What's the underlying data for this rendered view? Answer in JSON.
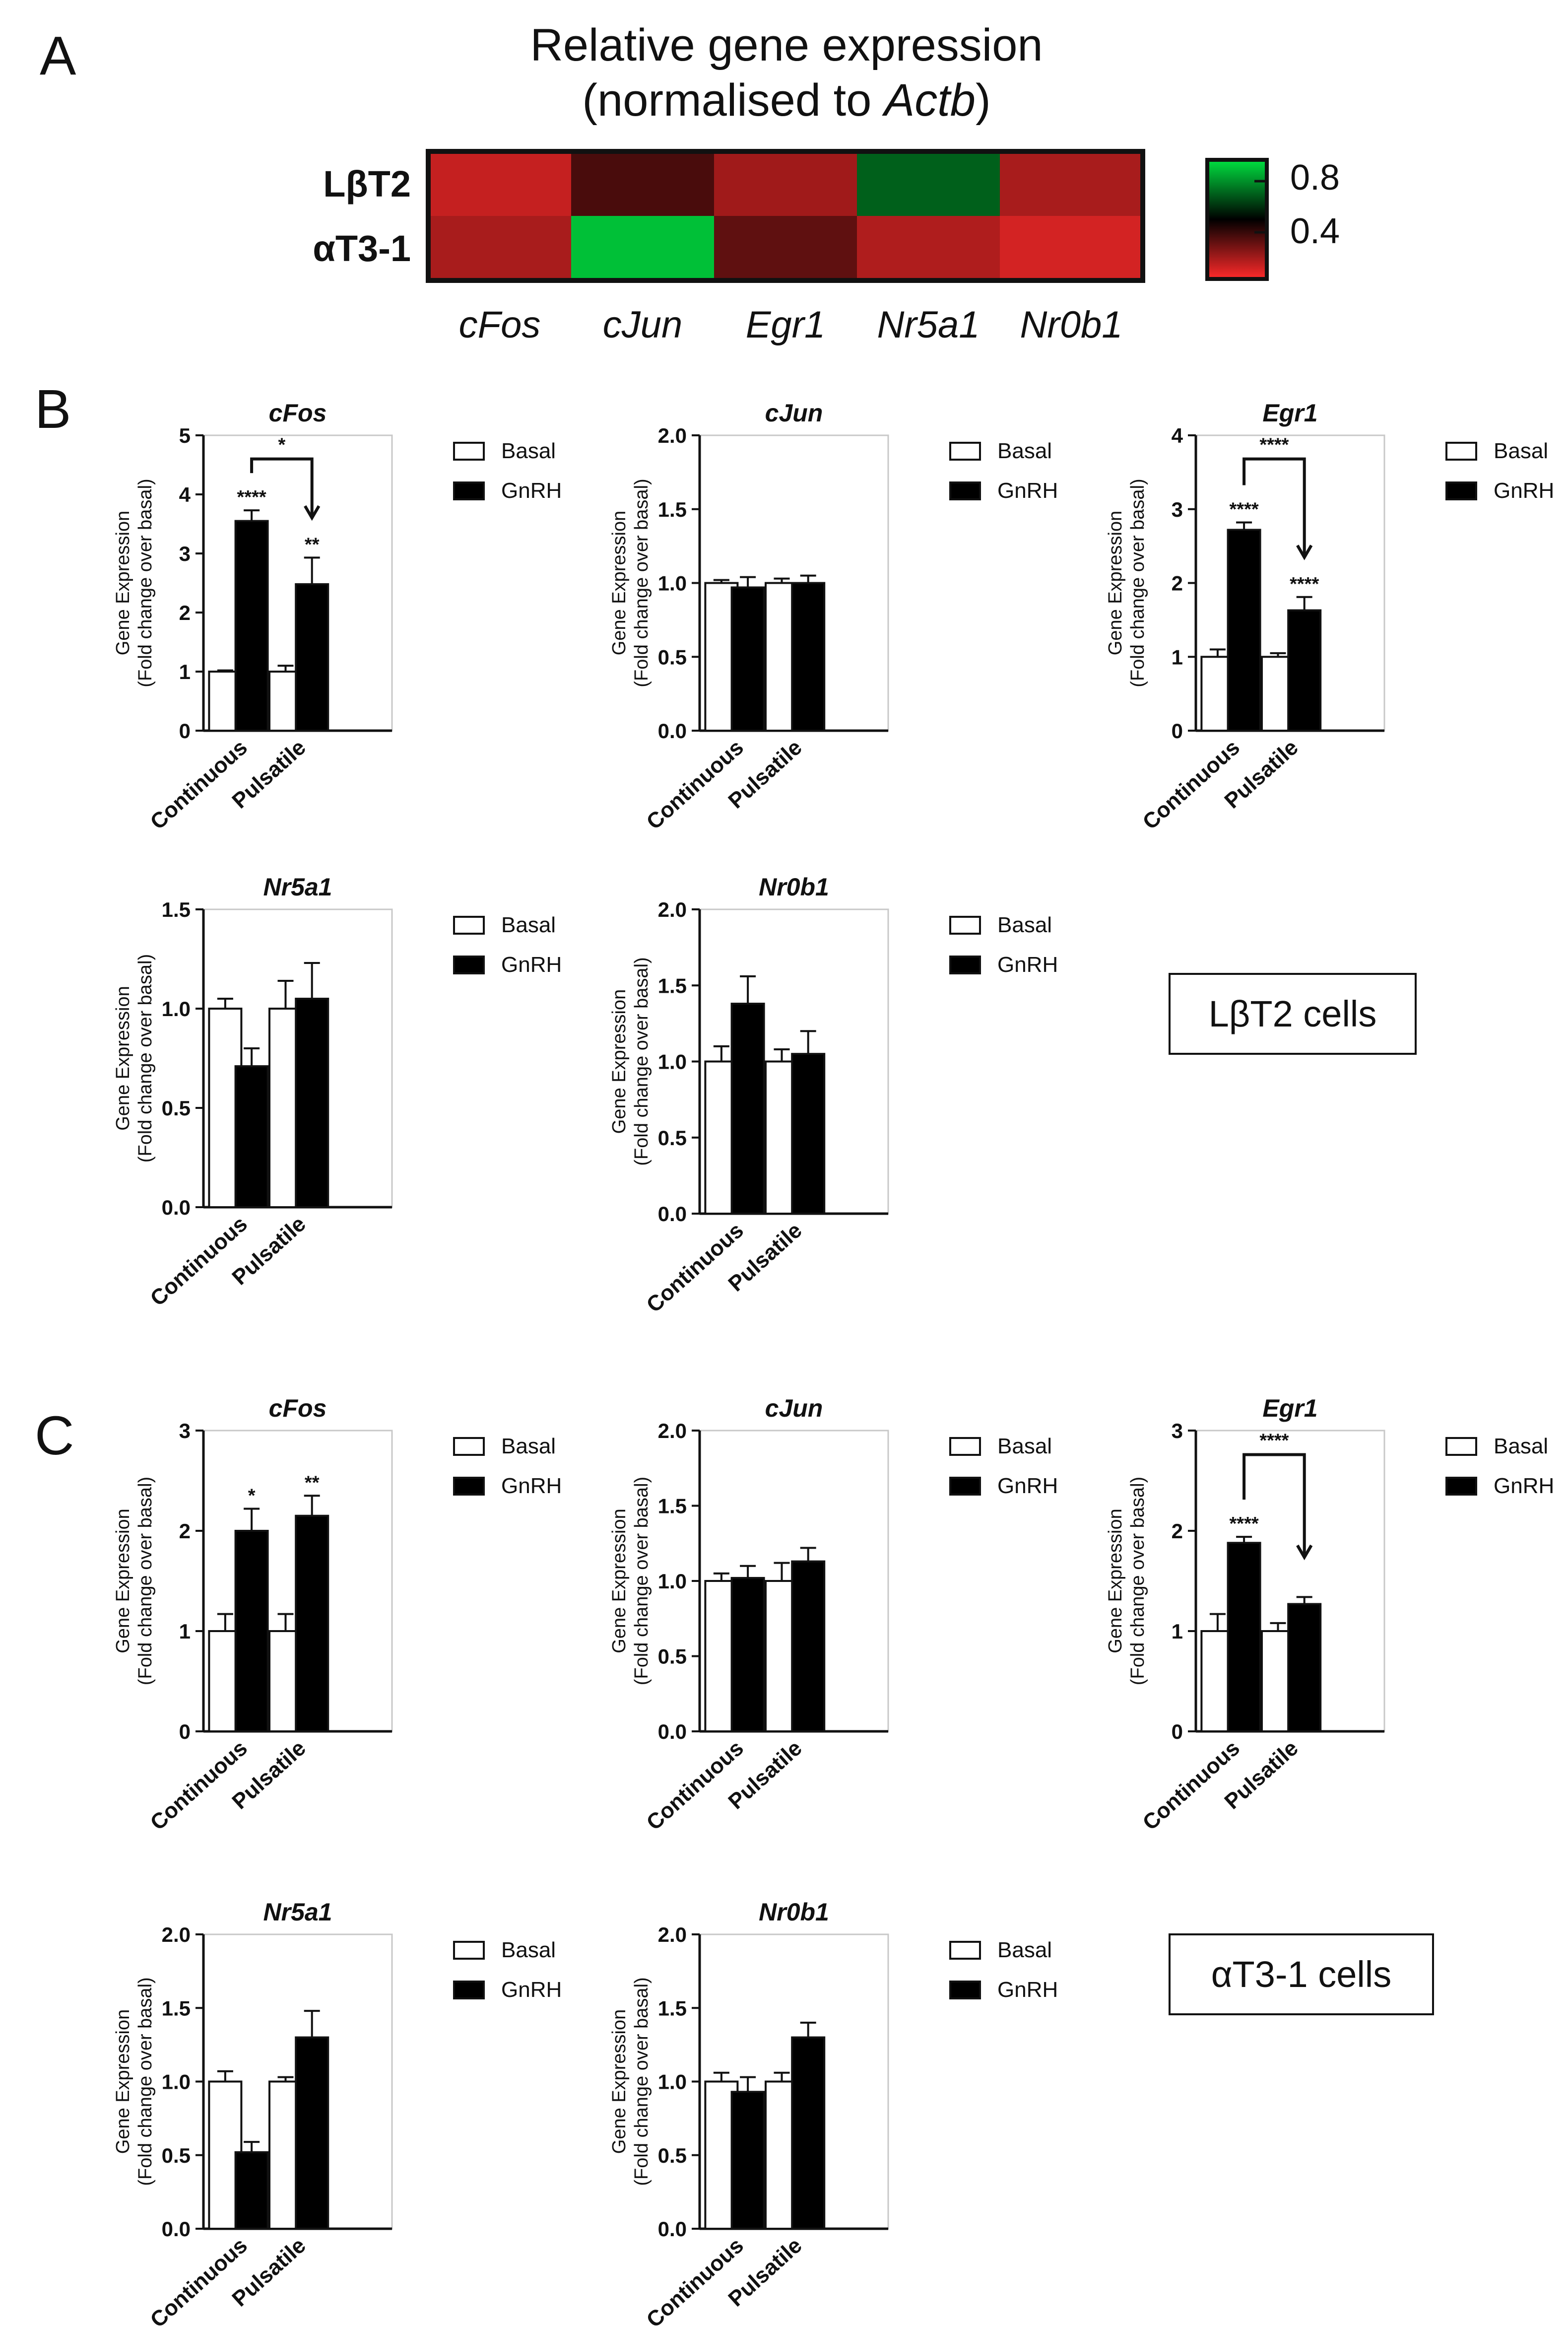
{
  "panel_labels": {
    "A": "A",
    "B": "B",
    "C": "C"
  },
  "legend": {
    "basal": "Basal",
    "gnrh": "GnRH"
  },
  "cell_labels": {
    "B": "LβT2 cells",
    "C": "αT3-1 cells"
  },
  "colors": {
    "basal": "#ffffff",
    "gnrh": "#000000",
    "heat_low": "#ff2a2a",
    "heat_mid": "#000000",
    "heat_high": "#00e040"
  },
  "chart_data": [
    {
      "id": "heatmap-A",
      "type": "heatmap",
      "title_line1": "Relative gene expression",
      "title_line2_prefix": "(normalised to ",
      "title_line2_gene": "Actb",
      "title_line2_suffix": ")",
      "rows": [
        "LβT2",
        "αT3-1"
      ],
      "columns": [
        "cFos",
        "cJun",
        "Egr1",
        "Nr5a1",
        "Nr0b1"
      ],
      "values": [
        [
          0.28,
          0.45,
          0.33,
          0.7,
          0.32
        ],
        [
          0.32,
          0.85,
          0.42,
          0.31,
          0.26
        ]
      ],
      "colorbar_ticks": [
        "0.8",
        "0.4"
      ],
      "scale_range": [
        0.2,
        0.9
      ]
    },
    {
      "id": "B-cFos",
      "type": "bar",
      "title": "cFos",
      "ylabel": [
        "Gene Expression",
        "(Fold change over basal)"
      ],
      "categories": [
        "Continuous",
        "Pulsatile"
      ],
      "ylim": [
        0,
        5
      ],
      "yticks": [
        "0",
        "1",
        "2",
        "3",
        "4",
        "5"
      ],
      "series": [
        {
          "name": "Basal",
          "values": [
            1.0,
            1.0
          ],
          "errors": [
            0.02,
            0.1
          ]
        },
        {
          "name": "GnRH",
          "values": [
            3.55,
            2.48
          ],
          "errors": [
            0.18,
            0.45
          ]
        }
      ],
      "stars": [
        [
          "",
          "****"
        ],
        [
          "",
          "**"
        ]
      ],
      "bracket": {
        "from": [
          0,
          1
        ],
        "to": [
          1,
          1
        ],
        "label": "*"
      }
    },
    {
      "id": "B-cJun",
      "type": "bar",
      "title": "cJun",
      "ylabel": [
        "Gene Expression",
        "(Fold change over basal)"
      ],
      "categories": [
        "Continuous",
        "Pulsatile"
      ],
      "ylim": [
        0,
        2
      ],
      "yticks": [
        "0.0",
        "0.5",
        "1.0",
        "1.5",
        "2.0"
      ],
      "series": [
        {
          "name": "Basal",
          "values": [
            1.0,
            1.0
          ],
          "errors": [
            0.02,
            0.03
          ]
        },
        {
          "name": "GnRH",
          "values": [
            0.97,
            1.0
          ],
          "errors": [
            0.07,
            0.05
          ]
        }
      ],
      "stars": [
        [
          "",
          ""
        ],
        [
          "",
          ""
        ]
      ],
      "bracket": null
    },
    {
      "id": "B-Egr1",
      "type": "bar",
      "title": "Egr1",
      "ylabel": [
        "Gene Expression",
        "(Fold change over basal)"
      ],
      "categories": [
        "Continuous",
        "Pulsatile"
      ],
      "ylim": [
        0,
        4
      ],
      "yticks": [
        "0",
        "1",
        "2",
        "3",
        "4"
      ],
      "series": [
        {
          "name": "Basal",
          "values": [
            1.0,
            1.0
          ],
          "errors": [
            0.1,
            0.05
          ]
        },
        {
          "name": "GnRH",
          "values": [
            2.72,
            1.63
          ],
          "errors": [
            0.1,
            0.18
          ]
        }
      ],
      "stars": [
        [
          "",
          "****"
        ],
        [
          "",
          "****"
        ]
      ],
      "bracket": {
        "from": [
          0,
          1
        ],
        "to": [
          1,
          1
        ],
        "label": "****"
      }
    },
    {
      "id": "B-Nr5a1",
      "type": "bar",
      "title": "Nr5a1",
      "ylabel": [
        "Gene Expression",
        "(Fold change over basal)"
      ],
      "categories": [
        "Continuous",
        "Pulsatile"
      ],
      "ylim": [
        0,
        1.5
      ],
      "yticks": [
        "0.0",
        "0.5",
        "1.0",
        "1.5"
      ],
      "series": [
        {
          "name": "Basal",
          "values": [
            1.0,
            1.0
          ],
          "errors": [
            0.05,
            0.14
          ]
        },
        {
          "name": "GnRH",
          "values": [
            0.71,
            1.05
          ],
          "errors": [
            0.09,
            0.18
          ]
        }
      ],
      "stars": [
        [
          "",
          ""
        ],
        [
          "",
          ""
        ]
      ],
      "bracket": null
    },
    {
      "id": "B-Nr0b1",
      "type": "bar",
      "title": "Nr0b1",
      "ylabel": [
        "Gene Expression",
        "(Fold change over basal)"
      ],
      "categories": [
        "Continuous",
        "Pulsatile"
      ],
      "ylim": [
        0,
        2
      ],
      "yticks": [
        "0.0",
        "0.5",
        "1.0",
        "1.5",
        "2.0"
      ],
      "series": [
        {
          "name": "Basal",
          "values": [
            1.0,
            1.0
          ],
          "errors": [
            0.1,
            0.08
          ]
        },
        {
          "name": "GnRH",
          "values": [
            1.38,
            1.05
          ],
          "errors": [
            0.18,
            0.15
          ]
        }
      ],
      "stars": [
        [
          "",
          ""
        ],
        [
          "",
          ""
        ]
      ],
      "bracket": null
    },
    {
      "id": "C-cFos",
      "type": "bar",
      "title": "cFos",
      "ylabel": [
        "Gene Expression",
        "(Fold change over basal)"
      ],
      "categories": [
        "Continuous",
        "Pulsatile"
      ],
      "ylim": [
        0,
        3
      ],
      "yticks": [
        "0",
        "1",
        "2",
        "3"
      ],
      "series": [
        {
          "name": "Basal",
          "values": [
            1.0,
            1.0
          ],
          "errors": [
            0.17,
            0.17
          ]
        },
        {
          "name": "GnRH",
          "values": [
            2.0,
            2.15
          ],
          "errors": [
            0.22,
            0.2
          ]
        }
      ],
      "stars": [
        [
          "",
          "*"
        ],
        [
          "",
          "**"
        ]
      ],
      "bracket": null
    },
    {
      "id": "C-cJun",
      "type": "bar",
      "title": "cJun",
      "ylabel": [
        "Gene Expression",
        "(Fold change over basal)"
      ],
      "categories": [
        "Continuous",
        "Pulsatile"
      ],
      "ylim": [
        0,
        2
      ],
      "yticks": [
        "0.0",
        "0.5",
        "1.0",
        "1.5",
        "2.0"
      ],
      "series": [
        {
          "name": "Basal",
          "values": [
            1.0,
            1.0
          ],
          "errors": [
            0.05,
            0.12
          ]
        },
        {
          "name": "GnRH",
          "values": [
            1.02,
            1.13
          ],
          "errors": [
            0.08,
            0.09
          ]
        }
      ],
      "stars": [
        [
          "",
          ""
        ],
        [
          "",
          ""
        ]
      ],
      "bracket": null
    },
    {
      "id": "C-Egr1",
      "type": "bar",
      "title": "Egr1",
      "ylabel": [
        "Gene Expression",
        "(Fold change over basal)"
      ],
      "categories": [
        "Continuous",
        "Pulsatile"
      ],
      "ylim": [
        0,
        3
      ],
      "yticks": [
        "0",
        "1",
        "2",
        "3"
      ],
      "series": [
        {
          "name": "Basal",
          "values": [
            1.0,
            1.0
          ],
          "errors": [
            0.17,
            0.08
          ]
        },
        {
          "name": "GnRH",
          "values": [
            1.88,
            1.27
          ],
          "errors": [
            0.06,
            0.07
          ]
        }
      ],
      "stars": [
        [
          "",
          "****"
        ],
        [
          "",
          ""
        ]
      ],
      "bracket": {
        "from": [
          0,
          1
        ],
        "to": [
          1,
          1
        ],
        "label": "****"
      }
    },
    {
      "id": "C-Nr5a1",
      "type": "bar",
      "title": "Nr5a1",
      "ylabel": [
        "Gene Expression",
        "(Fold change over basal)"
      ],
      "categories": [
        "Continuous",
        "Pulsatile"
      ],
      "ylim": [
        0,
        2
      ],
      "yticks": [
        "0.0",
        "0.5",
        "1.0",
        "1.5",
        "2.0"
      ],
      "series": [
        {
          "name": "Basal",
          "values": [
            1.0,
            1.0
          ],
          "errors": [
            0.07,
            0.03
          ]
        },
        {
          "name": "GnRH",
          "values": [
            0.52,
            1.3
          ],
          "errors": [
            0.07,
            0.18
          ]
        }
      ],
      "stars": [
        [
          "",
          ""
        ],
        [
          "",
          ""
        ]
      ],
      "bracket": null
    },
    {
      "id": "C-Nr0b1",
      "type": "bar",
      "title": "Nr0b1",
      "ylabel": [
        "Gene Expression",
        "(Fold change over basal)"
      ],
      "categories": [
        "Continuous",
        "Pulsatile"
      ],
      "ylim": [
        0,
        2
      ],
      "yticks": [
        "0.0",
        "0.5",
        "1.0",
        "1.5",
        "2.0"
      ],
      "series": [
        {
          "name": "Basal",
          "values": [
            1.0,
            1.0
          ],
          "errors": [
            0.06,
            0.06
          ]
        },
        {
          "name": "GnRH",
          "values": [
            0.93,
            1.3
          ],
          "errors": [
            0.1,
            0.1
          ]
        }
      ],
      "stars": [
        [
          "",
          ""
        ],
        [
          "",
          ""
        ]
      ],
      "bracket": null
    }
  ]
}
